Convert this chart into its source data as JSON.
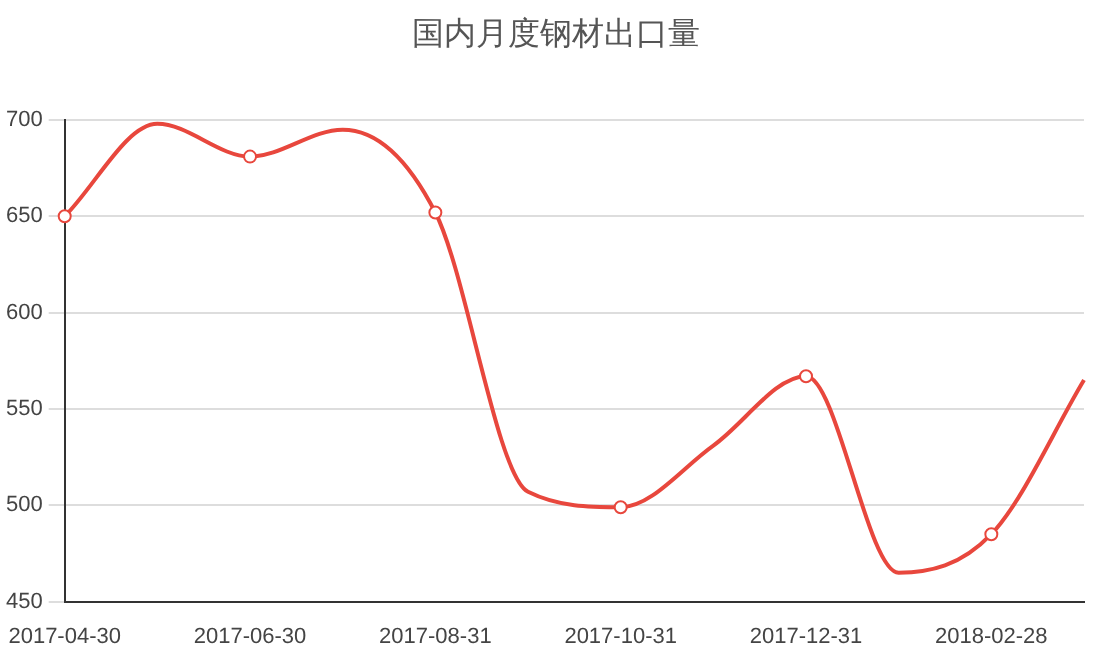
{
  "chart_data": {
    "type": "line",
    "title": "国内月度钢材出口量",
    "categories": [
      "2017-04-30",
      null,
      "2017-06-30",
      null,
      "2017-08-31",
      null,
      "2017-10-31",
      null,
      "2017-12-31",
      null,
      "2018-02-28",
      null
    ],
    "series": [
      {
        "color": "#e8473d",
        "values": [
          650,
          698,
          681,
          695,
          652,
          507,
          499,
          531,
          567,
          465,
          485,
          565
        ]
      }
    ],
    "ylim": [
      450,
      700
    ],
    "yticks": [
      450,
      500,
      550,
      600,
      650,
      700
    ],
    "grid": "y",
    "legend": false,
    "marker": "circle",
    "line_style": "solid"
  }
}
